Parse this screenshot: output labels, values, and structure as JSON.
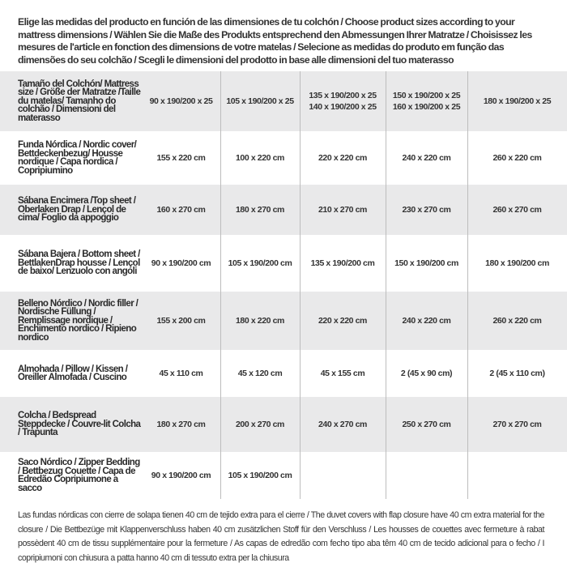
{
  "intro": "Elige las medidas del producto en función de las dimensiones de tu colchón / Choose product sizes according to your mattress dimensions / Wählen Sie die Maße des Produkts entsprechend den Abmessungen Ihrer Matratze / Choisissez les mesures de l'article en fonction des dimensions de votre matelas / Selecione as medidas do produto em função das dimensões do seu colchão / Scegli le dimensioni del prodotto in base alle dimensioni del tuo materasso",
  "table": {
    "rows": [
      {
        "label": "Tamaño del Colchón/ Mattress size / Größe der Matratze /Taille du matelas/ Tamanho do colchão / Dimensioni del materasso",
        "cells": [
          "90 x 190/200 x 25",
          "105 x 190/200 x 25",
          "135 x 190/200 x 25\n140 x 190/200 x 25",
          "150 x 190/200 x 25\n160 x 190/200 x 25",
          "180 x 190/200 x 25"
        ]
      },
      {
        "label": "Funda Nórdica /  Nordic cover/ Bettdeckenbezug/ Housse nordique  / Capa nordica / Copripiumino",
        "cells": [
          "155 x 220 cm",
          "100 x 220 cm",
          "220 x 220 cm",
          "240 x 220 cm",
          "260 x 220 cm"
        ]
      },
      {
        "label": "Sábana Encimera /Top sheet / Oberlaken Drap / Lençol de cima/ Foglio da appoggio",
        "cells": [
          "160 x 270 cm",
          "180 x 270 cm",
          "210 x 270 cm",
          "230 x 270 cm",
          "260 x 270 cm"
        ]
      },
      {
        "label": "Sábana Bajera / Bottom sheet / BettlakenDrap housse / Lençol de baixo/ Lenzuolo con angoli",
        "cells": [
          "90 x 190/200 cm",
          "105 x 190/200 cm",
          "135 x 190/200 cm",
          "150 x 190/200 cm",
          "180 x 190/200 cm"
        ]
      },
      {
        "label": "Belleno Nórdico / Nordic filler / Nordische Füllung / Remplissage nordique / Enchimento nordico / Ripieno nordico",
        "cells": [
          "155 x 200 cm",
          "180 x 220 cm",
          "220 x 220 cm",
          "240 x 220 cm",
          "260 x 220 cm"
        ]
      },
      {
        "label": "Almohada  / Pillow / Kissen / Oreiller Almofada / Cuscino",
        "cells": [
          "45 x 110 cm",
          "45 x 120 cm",
          "45 x 155 cm",
          "2 (45 x 90 cm)",
          "2 (45 x 110 cm)"
        ]
      },
      {
        "label": "Colcha / Bedspread Steppdecke / Couvre-lit Colcha / Trapunta",
        "cells": [
          "180 x 270 cm",
          "200 x 270 cm",
          "240 x 270 cm",
          "250 x 270 cm",
          "270 x 270 cm"
        ]
      },
      {
        "label": "Saco Nórdico / Zipper Bedding / Bettbezug Couette  / Capa de Edredão Copripiumone a sacco",
        "cells": [
          "90 x 190/200 cm",
          "105 x 190/200 cm",
          "",
          "",
          ""
        ]
      }
    ]
  },
  "footer": "Las fundas nórdicas con cierre de solapa tienen 40 cm de tejido extra para el cierre  / The duvet covers with flap closure have 40 cm extra material for the closure / Die Bettbezüge mit Klappenverschluss haben 40 cm zusätzlichen Stoff für den Verschluss / Les housses de couettes avec fermeture à rabat possèdent 40 cm de tissu supplémentaire pour la fermeture / As capas de edredão com fecho tipo aba têm 40 cm de tecido adicional para o fecho / I copripiumoni con chiusura a patta hanno 40 cm di tessuto extra per la chiusura",
  "colors": {
    "row_gray": "#e9e9ea",
    "row_white": "#ffffff",
    "text": "#2a2a2a",
    "grid": "#bdbdbd"
  }
}
